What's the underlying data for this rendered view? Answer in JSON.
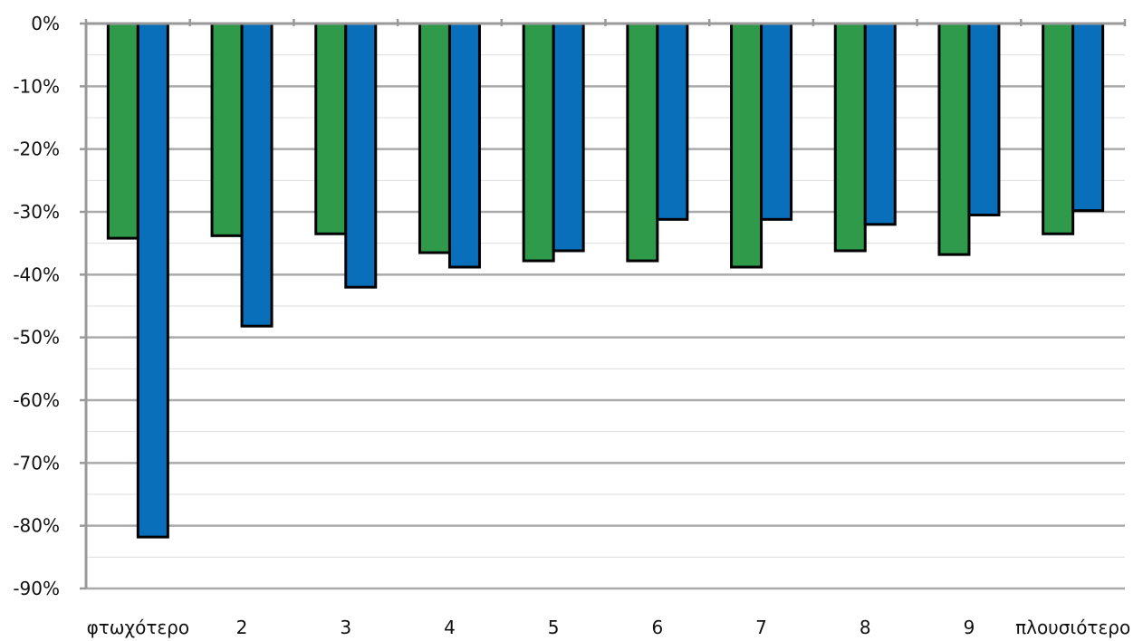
{
  "chart_data": {
    "type": "bar",
    "categories": [
      "φτωχότερο",
      "2",
      "3",
      "4",
      "5",
      "6",
      "7",
      "8",
      "9",
      "πλουσιότερο"
    ],
    "series": [
      {
        "color": "#2e9a4a",
        "values": [
          -34.2,
          -33.8,
          -33.5,
          -36.5,
          -37.8,
          -37.8,
          -38.8,
          -36.2,
          -36.8,
          -33.5
        ]
      },
      {
        "color": "#0a6fba",
        "values": [
          -81.8,
          -48.2,
          -42.0,
          -38.8,
          -36.2,
          -31.2,
          -31.2,
          -32.0,
          -30.5,
          -29.8
        ]
      }
    ],
    "y_ticks": [
      "0%",
      "-10%",
      "-20%",
      "-30%",
      "-40%",
      "-50%",
      "-60%",
      "-70%",
      "-80%",
      "-90%"
    ],
    "ylim": [
      -90,
      0
    ],
    "grid": true,
    "gridline_color": "#aaaaaa",
    "minor_gridline_color": "#dddddd"
  }
}
